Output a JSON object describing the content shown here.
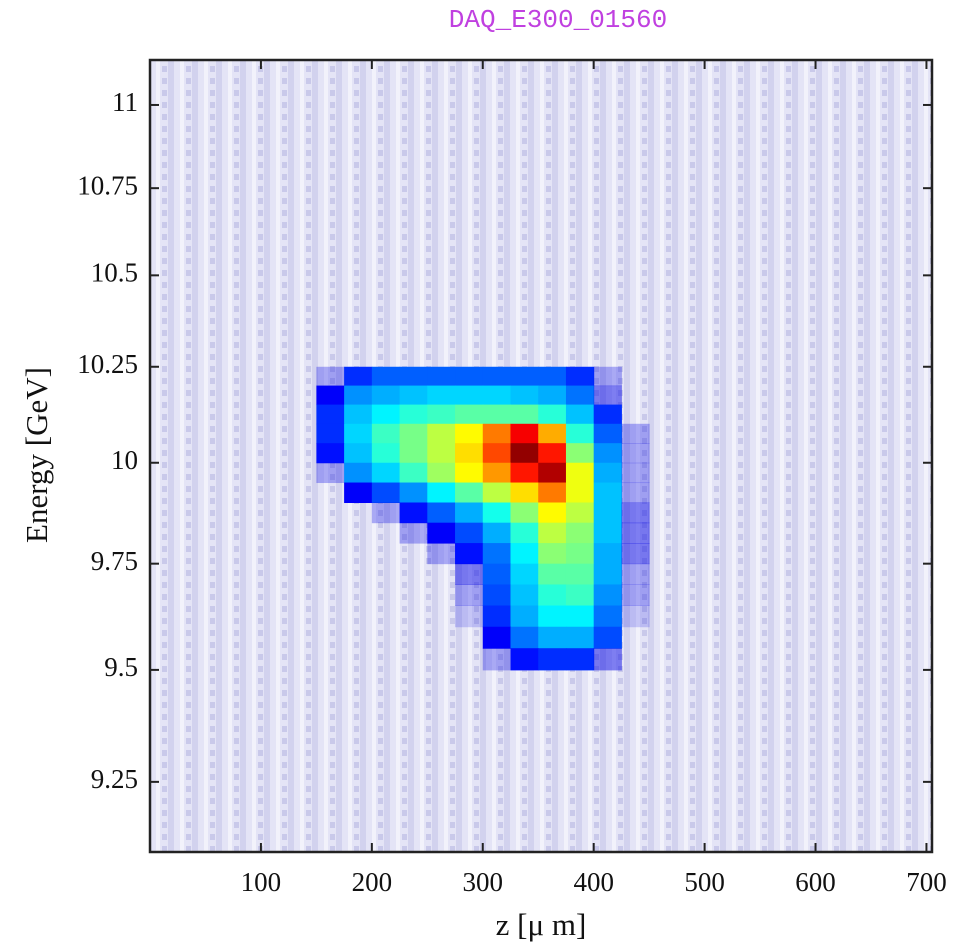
{
  "chart_data": {
    "type": "heatmap",
    "title": "DAQ_E300_01560",
    "title_color": "#c040e0",
    "xlabel": "z [μ m]",
    "ylabel": "Energy [GeV]",
    "xlim": [
      0,
      705
    ],
    "xticks": [
      100,
      200,
      300,
      400,
      500,
      600,
      700
    ],
    "ylim": [
      9.1,
      11.14
    ],
    "yticks": [
      9.25,
      9.5,
      9.75,
      10,
      10.25,
      10.5,
      10.75,
      11
    ],
    "yscale": "reciprocal",
    "colormap": "jet",
    "zlim": [
      0,
      100
    ],
    "x_edges": [
      150,
      175,
      200,
      225,
      250,
      275,
      300,
      325,
      350,
      375,
      400,
      425,
      450
    ],
    "y_edges": [
      10.25,
      10.2,
      10.15,
      10.1,
      10.05,
      10,
      9.95,
      9.9,
      9.85,
      9.8,
      9.75,
      9.7,
      9.65,
      9.6,
      9.55,
      9.5
    ],
    "z": [
      [
        5,
        15,
        20,
        20,
        20,
        20,
        20,
        20,
        20,
        15,
        5,
        0
      ],
      [
        10,
        25,
        28,
        30,
        32,
        32,
        32,
        30,
        28,
        22,
        8,
        0
      ],
      [
        15,
        30,
        35,
        40,
        42,
        45,
        45,
        45,
        40,
        30,
        15,
        0
      ],
      [
        15,
        32,
        42,
        48,
        55,
        62,
        75,
        88,
        70,
        40,
        20,
        5
      ],
      [
        12,
        30,
        40,
        48,
        55,
        65,
        80,
        98,
        85,
        50,
        25,
        5
      ],
      [
        5,
        25,
        32,
        42,
        52,
        62,
        72,
        85,
        95,
        60,
        28,
        5
      ],
      [
        0,
        10,
        18,
        25,
        35,
        45,
        55,
        65,
        75,
        60,
        30,
        5
      ],
      [
        0,
        0,
        5,
        12,
        20,
        28,
        38,
        50,
        62,
        55,
        30,
        8
      ],
      [
        0,
        0,
        0,
        5,
        10,
        18,
        28,
        40,
        55,
        50,
        30,
        8
      ],
      [
        0,
        0,
        0,
        0,
        5,
        12,
        22,
        35,
        50,
        48,
        28,
        8
      ],
      [
        0,
        0,
        0,
        0,
        0,
        8,
        20,
        32,
        45,
        45,
        28,
        5
      ],
      [
        0,
        0,
        0,
        0,
        0,
        5,
        18,
        30,
        40,
        42,
        25,
        5
      ],
      [
        0,
        0,
        0,
        0,
        0,
        3,
        15,
        28,
        35,
        35,
        22,
        3
      ],
      [
        0,
        0,
        0,
        0,
        0,
        0,
        10,
        22,
        28,
        28,
        18,
        0
      ],
      [
        0,
        0,
        0,
        0,
        0,
        0,
        5,
        12,
        15,
        15,
        8,
        0
      ]
    ]
  }
}
